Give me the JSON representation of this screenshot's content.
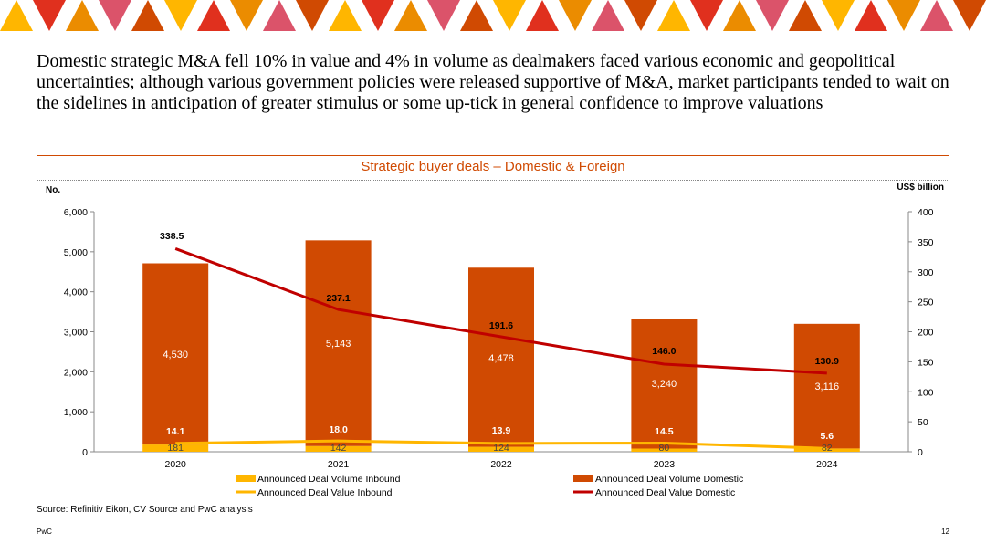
{
  "headline": "Domestic strategic M&A fell 10% in value and 4% in volume as dealmakers faced various economic and geopolitical uncertainties; although various government policies were released supportive of M&A, market participants tended to wait on the sidelines in anticipation of greater stimulus or some up-tick in general confidence to improve valuations",
  "source": "Source: Refinitiv Eikon, CV Source and PwC analysis",
  "footer": {
    "brand": "PwC",
    "page": "12"
  },
  "colors": {
    "accent": "#d04a02",
    "inbound": "#ffb600",
    "domestic_bar": "#d04a02",
    "domestic_line": "#c00000",
    "banner": [
      "#ffb600",
      "#e0301e",
      "#eb8c00",
      "#db536a",
      "#d04a02"
    ]
  },
  "chart_data": {
    "type": "bar",
    "title": "Strategic buyer deals – Domestic & Foreign",
    "ylabel_left": "No.",
    "ylabel_right": "US$ billion",
    "categories": [
      "2020",
      "2021",
      "2022",
      "2023",
      "2024"
    ],
    "ylim_left": [
      0,
      6000
    ],
    "yticks_left": [
      "0",
      "1,000",
      "2,000",
      "3,000",
      "4,000",
      "5,000",
      "6,000"
    ],
    "ylim_right": [
      0,
      400
    ],
    "yticks_right": [
      "0",
      "50",
      "100",
      "150",
      "200",
      "250",
      "300",
      "350",
      "400"
    ],
    "stacked": true,
    "series": [
      {
        "name": "Announced Deal Volume Inbound",
        "kind": "bar",
        "axis": "left",
        "values": [
          181,
          142,
          124,
          80,
          82
        ],
        "labels": [
          "181",
          "142",
          "124",
          "80",
          "82"
        ]
      },
      {
        "name": "Announced Deal Volume Domestic",
        "kind": "bar",
        "axis": "left",
        "values": [
          4530,
          5143,
          4478,
          3240,
          3116
        ],
        "labels": [
          "4,530",
          "5,143",
          "4,478",
          "3,240",
          "3,116"
        ]
      },
      {
        "name": "Announced Deal Value Inbound",
        "kind": "line",
        "axis": "right",
        "values": [
          14.1,
          18.0,
          13.9,
          14.5,
          5.6
        ],
        "labels": [
          "14.1",
          "18.0",
          "13.9",
          "14.5",
          "5.6"
        ]
      },
      {
        "name": "Announced Deal Value Domestic",
        "kind": "line",
        "axis": "right",
        "values": [
          338.5,
          237.1,
          191.6,
          146.0,
          130.9
        ],
        "labels": [
          "338.5",
          "237.1",
          "191.6",
          "146.0",
          "130.9"
        ]
      }
    ],
    "legend": "bottom"
  }
}
